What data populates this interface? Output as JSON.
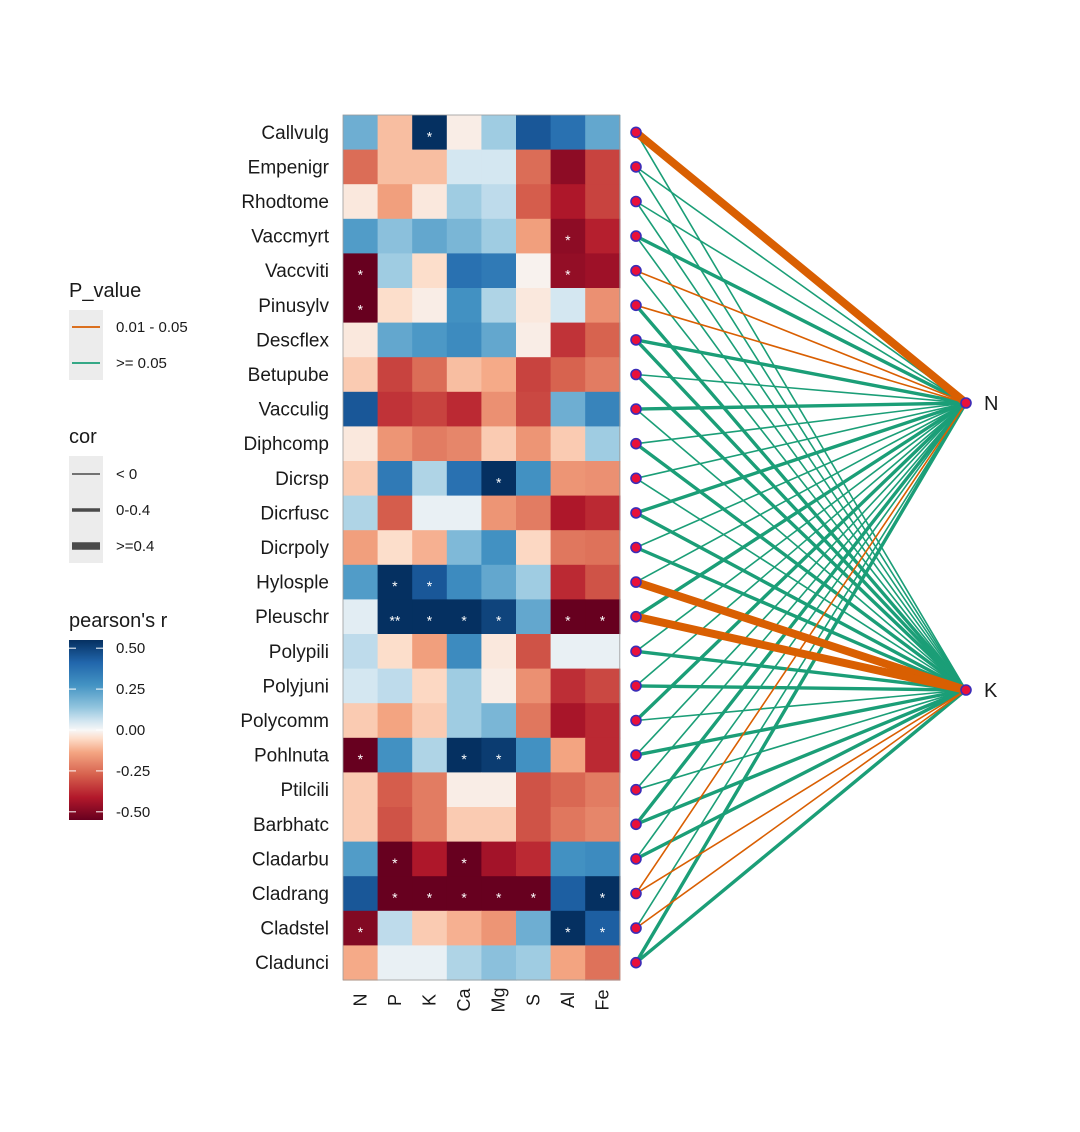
{
  "chart_data": {
    "type": "heatmap",
    "title": "",
    "species": [
      "Callvulg",
      "Empenigr",
      "Rhodtome",
      "Vaccmyrt",
      "Vaccviti",
      "Pinusylv",
      "Descflex",
      "Betupube",
      "Vacculig",
      "Diphcomp",
      "Dicrsp",
      "Dicrfusc",
      "Dicrpoly",
      "Hylosple",
      "Pleuschr",
      "Polypili",
      "Polyjuni",
      "Polycomm",
      "Pohlnuta",
      "Ptilcili",
      "Barbhatc",
      "Cladarbu",
      "Cladrang",
      "Cladstel",
      "Cladunci"
    ],
    "variables": [
      "N",
      "P",
      "K",
      "Ca",
      "Mg",
      "S",
      "Al",
      "Fe"
    ],
    "values": [
      [
        0.2,
        -0.1,
        0.55,
        -0.02,
        0.12,
        0.45,
        0.38,
        0.22
      ],
      [
        -0.25,
        -0.1,
        -0.1,
        0.05,
        0.05,
        -0.25,
        -0.48,
        -0.33
      ],
      [
        -0.03,
        -0.15,
        -0.03,
        0.12,
        0.08,
        -0.28,
        -0.42,
        -0.33
      ],
      [
        0.25,
        0.15,
        0.22,
        0.18,
        0.12,
        -0.15,
        -0.48,
        -0.4
      ],
      [
        -0.55,
        0.12,
        -0.05,
        0.38,
        0.35,
        -0.01,
        -0.47,
        -0.45
      ],
      [
        -0.6,
        -0.05,
        -0.02,
        0.28,
        0.1,
        -0.03,
        0.05,
        -0.18
      ],
      [
        -0.03,
        0.22,
        0.26,
        0.3,
        0.22,
        -0.02,
        -0.36,
        -0.27
      ],
      [
        -0.08,
        -0.33,
        -0.25,
        -0.1,
        -0.13,
        -0.33,
        -0.27,
        -0.22
      ],
      [
        0.45,
        -0.36,
        -0.33,
        -0.38,
        -0.18,
        -0.32,
        0.2,
        0.32
      ],
      [
        -0.03,
        -0.17,
        -0.22,
        -0.2,
        -0.08,
        -0.17,
        -0.08,
        0.12
      ],
      [
        -0.08,
        0.35,
        0.1,
        0.38,
        0.55,
        0.28,
        -0.17,
        -0.18
      ],
      [
        0.1,
        -0.28,
        0.02,
        0.02,
        -0.17,
        -0.22,
        -0.42,
        -0.38
      ],
      [
        -0.15,
        -0.05,
        -0.12,
        0.17,
        0.28,
        -0.06,
        -0.23,
        -0.24
      ],
      [
        0.25,
        0.55,
        0.45,
        0.3,
        0.22,
        0.12,
        -0.38,
        -0.3
      ],
      [
        0.03,
        0.58,
        0.55,
        0.55,
        0.5,
        0.22,
        -0.58,
        -0.58
      ],
      [
        0.08,
        -0.05,
        -0.15,
        0.3,
        -0.03,
        -0.3,
        0.02,
        0.02
      ],
      [
        0.05,
        0.08,
        -0.06,
        0.12,
        -0.02,
        -0.18,
        -0.37,
        -0.32
      ],
      [
        -0.08,
        -0.14,
        -0.08,
        0.12,
        0.18,
        -0.23,
        -0.43,
        -0.38
      ],
      [
        -0.58,
        0.28,
        0.1,
        0.55,
        0.52,
        0.28,
        -0.14,
        -0.38
      ],
      [
        -0.08,
        -0.28,
        -0.22,
        -0.02,
        -0.02,
        -0.3,
        -0.26,
        -0.22
      ],
      [
        -0.08,
        -0.3,
        -0.22,
        -0.08,
        -0.08,
        -0.3,
        -0.23,
        -0.2
      ],
      [
        0.25,
        -0.6,
        -0.42,
        -0.6,
        -0.44,
        -0.38,
        0.28,
        0.3
      ],
      [
        0.45,
        -0.6,
        -0.6,
        -0.6,
        -0.6,
        -0.6,
        0.43,
        0.58
      ],
      [
        -0.5,
        0.08,
        -0.08,
        -0.12,
        -0.17,
        0.2,
        0.58,
        0.43
      ],
      [
        -0.13,
        0.02,
        0.02,
        0.1,
        0.15,
        0.12,
        -0.14,
        -0.24
      ]
    ],
    "significance": [
      [
        "",
        "",
        "*",
        "",
        "",
        "",
        "",
        ""
      ],
      [
        "",
        "",
        "",
        "",
        "",
        "",
        "",
        ""
      ],
      [
        "",
        "",
        "",
        "",
        "",
        "",
        "",
        ""
      ],
      [
        "",
        "",
        "",
        "",
        "",
        "",
        "*",
        ""
      ],
      [
        "*",
        "",
        "",
        "",
        "",
        "",
        "*",
        ""
      ],
      [
        "*",
        "",
        "",
        "",
        "",
        "",
        "",
        ""
      ],
      [
        "",
        "",
        "",
        "",
        "",
        "",
        "",
        ""
      ],
      [
        "",
        "",
        "",
        "",
        "",
        "",
        "",
        ""
      ],
      [
        "",
        "",
        "",
        "",
        "",
        "",
        "",
        ""
      ],
      [
        "",
        "",
        "",
        "",
        "",
        "",
        "",
        ""
      ],
      [
        "",
        "",
        "",
        "",
        "*",
        "",
        "",
        ""
      ],
      [
        "",
        "",
        "",
        "",
        "",
        "",
        "",
        ""
      ],
      [
        "",
        "",
        "",
        "",
        "",
        "",
        "",
        ""
      ],
      [
        "",
        "*",
        "*",
        "",
        "",
        "",
        "",
        ""
      ],
      [
        "",
        "**",
        "*",
        "*",
        "*",
        "",
        "*",
        "*"
      ],
      [
        "",
        "",
        "",
        "",
        "",
        "",
        "",
        ""
      ],
      [
        "",
        "",
        "",
        "",
        "",
        "",
        "",
        ""
      ],
      [
        "",
        "",
        "",
        "",
        "",
        "",
        "",
        ""
      ],
      [
        "*",
        "",
        "",
        "*",
        "*",
        "",
        "",
        ""
      ],
      [
        "",
        "",
        "",
        "",
        "",
        "",
        "",
        ""
      ],
      [
        "",
        "",
        "",
        "",
        "",
        "",
        "",
        ""
      ],
      [
        "",
        "*",
        "",
        "*",
        "",
        "",
        "",
        ""
      ],
      [
        "",
        "*",
        "*",
        "*",
        "*",
        "*",
        "",
        "*"
      ],
      [
        "*",
        "",
        "",
        "",
        "",
        "",
        "*",
        "*"
      ],
      [
        "",
        "",
        "",
        "",
        "",
        "",
        "",
        ""
      ]
    ],
    "mantel_nodes": [
      "N",
      "K"
    ],
    "mantel_links": {
      "N": [
        {
          "p": "0.01 - 0.05",
          "w": ">=0.4"
        },
        {
          "p": ">= 0.05",
          "w": "< 0"
        },
        {
          "p": ">= 0.05",
          "w": "< 0"
        },
        {
          "p": ">= 0.05",
          "w": "0-0.4"
        },
        {
          "p": "0.01 - 0.05",
          "w": "< 0"
        },
        {
          "p": "0.01 - 0.05",
          "w": "< 0"
        },
        {
          "p": ">= 0.05",
          "w": "0-0.4"
        },
        {
          "p": ">= 0.05",
          "w": "< 0"
        },
        {
          "p": ">= 0.05",
          "w": "0-0.4"
        },
        {
          "p": ">= 0.05",
          "w": "< 0"
        },
        {
          "p": ">= 0.05",
          "w": "< 0"
        },
        {
          "p": ">= 0.05",
          "w": "0-0.4"
        },
        {
          "p": ">= 0.05",
          "w": "< 0"
        },
        {
          "p": ">= 0.05",
          "w": "< 0"
        },
        {
          "p": ">= 0.05",
          "w": "0-0.4"
        },
        {
          "p": ">= 0.05",
          "w": "< 0"
        },
        {
          "p": ">= 0.05",
          "w": "< 0"
        },
        {
          "p": ">= 0.05",
          "w": "0-0.4"
        },
        {
          "p": ">= 0.05",
          "w": "< 0"
        },
        {
          "p": ">= 0.05",
          "w": "< 0"
        },
        {
          "p": ">= 0.05",
          "w": "0-0.4"
        },
        {
          "p": ">= 0.05",
          "w": "< 0"
        },
        {
          "p": "0.01 - 0.05",
          "w": "< 0"
        },
        {
          "p": ">= 0.05",
          "w": "< 0"
        },
        {
          "p": ">= 0.05",
          "w": "0-0.4"
        }
      ],
      "K": [
        {
          "p": ">= 0.05",
          "w": "< 0"
        },
        {
          "p": ">= 0.05",
          "w": "< 0"
        },
        {
          "p": ">= 0.05",
          "w": "< 0"
        },
        {
          "p": ">= 0.05",
          "w": "< 0"
        },
        {
          "p": ">= 0.05",
          "w": "< 0"
        },
        {
          "p": ">= 0.05",
          "w": "0-0.4"
        },
        {
          "p": ">= 0.05",
          "w": "0-0.4"
        },
        {
          "p": ">= 0.05",
          "w": "0-0.4"
        },
        {
          "p": ">= 0.05",
          "w": "< 0"
        },
        {
          "p": ">= 0.05",
          "w": "0-0.4"
        },
        {
          "p": ">= 0.05",
          "w": "< 0"
        },
        {
          "p": ">= 0.05",
          "w": "0-0.4"
        },
        {
          "p": ">= 0.05",
          "w": "0-0.4"
        },
        {
          "p": "0.01 - 0.05",
          "w": ">=0.4"
        },
        {
          "p": "0.01 - 0.05",
          "w": ">=0.4"
        },
        {
          "p": ">= 0.05",
          "w": "0-0.4"
        },
        {
          "p": ">= 0.05",
          "w": "0-0.4"
        },
        {
          "p": ">= 0.05",
          "w": "< 0"
        },
        {
          "p": ">= 0.05",
          "w": "0-0.4"
        },
        {
          "p": ">= 0.05",
          "w": "< 0"
        },
        {
          "p": ">= 0.05",
          "w": "0-0.4"
        },
        {
          "p": ">= 0.05",
          "w": "0-0.4"
        },
        {
          "p": "0.01 - 0.05",
          "w": "< 0"
        },
        {
          "p": "0.01 - 0.05",
          "w": "< 0"
        },
        {
          "p": ">= 0.05",
          "w": "0-0.4"
        }
      ]
    },
    "legend_p_value": {
      "title": "P_value",
      "entries": [
        {
          "label": "0.01 - 0.05",
          "color": "#D95F02"
        },
        {
          "label": ">= 0.05",
          "color": "#1B9E77"
        }
      ]
    },
    "legend_cor": {
      "title": "cor",
      "entries": [
        {
          "label": "< 0",
          "w": "thin"
        },
        {
          "label": "0-0.4",
          "w": "medium"
        },
        {
          "label": ">=0.4",
          "w": "thick"
        }
      ]
    },
    "legend_pearson": {
      "title": "pearson's r",
      "ticks": [
        "0.50",
        "0.25",
        "0.00",
        "-0.25",
        "-0.50"
      ],
      "range": [
        -0.55,
        0.55
      ]
    },
    "colors": {
      "significant": "#D95F02",
      "non_significant": "#1B9E77",
      "node_fill": "#E8103A",
      "node_stroke": "#3B2DB8"
    }
  }
}
